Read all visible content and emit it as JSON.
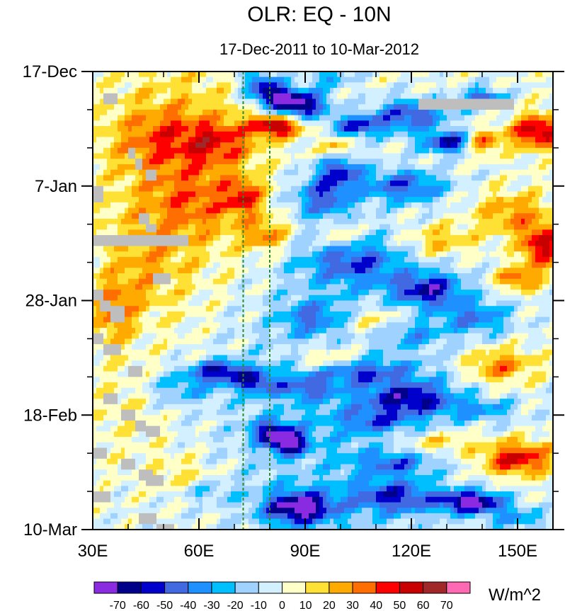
{
  "chart_data": {
    "type": "heatmap",
    "title": "OLR: EQ - 10N",
    "subtitle": "17-Dec-2011 to 10-Mar-2012",
    "x_axis": {
      "range": [
        30,
        160
      ],
      "ticks": [
        30,
        60,
        90,
        120,
        150
      ],
      "tick_labels": [
        "30E",
        "60E",
        "90E",
        "120E",
        "150E"
      ],
      "minor_step": 10
    },
    "y_axis": {
      "range_days": [
        0,
        84
      ],
      "ticks": [
        0,
        21,
        42,
        63,
        84
      ],
      "tick_labels": [
        "17-Dec",
        "7-Jan",
        "28-Jan",
        "18-Feb",
        "10-Mar"
      ],
      "minor_step_days": 7
    },
    "reference_lines": [
      {
        "lon": 72.5,
        "style": "dashed",
        "color": "#2e8b2e"
      },
      {
        "lon": 80,
        "style": "dashed",
        "color": "#2e8b2e"
      }
    ],
    "colorbar": {
      "units": "W/m^2",
      "levels": [
        -70,
        -60,
        -50,
        -40,
        -30,
        -20,
        -10,
        0,
        10,
        20,
        30,
        40,
        50,
        60,
        70
      ],
      "level_labels": [
        "-70",
        "-60",
        "-50",
        "-40",
        "-30",
        "-20",
        "-10",
        "0",
        "10",
        "20",
        "30",
        "40",
        "50",
        "60",
        "70"
      ],
      "colors": [
        "#8a2be2",
        "#00008b",
        "#0000cd",
        "#4169e1",
        "#1e90ff",
        "#00bfff",
        "#a0d2ff",
        "#d2f0ff",
        "#ffffc8",
        "#ffe135",
        "#ffaa00",
        "#ff6e00",
        "#ff0000",
        "#c80000",
        "#a02828",
        "#ff69b4"
      ]
    },
    "missing_data_color": "#bebebe",
    "missing_data_blocks": [
      {
        "lon": [
          33,
          37
        ],
        "days": [
          4,
          6
        ]
      },
      {
        "lon": [
          40,
          42
        ],
        "days": [
          14,
          16
        ]
      },
      {
        "lon": [
          42,
          44
        ],
        "days": [
          16,
          18
        ]
      },
      {
        "lon": [
          45,
          48
        ],
        "days": [
          18,
          20
        ]
      },
      {
        "lon": [
          30,
          33
        ],
        "days": [
          21,
          24
        ]
      },
      {
        "lon": [
          43,
          46
        ],
        "days": [
          26,
          28
        ]
      },
      {
        "lon": [
          45,
          48
        ],
        "days": [
          28,
          29.5
        ]
      },
      {
        "lon": [
          30,
          57
        ],
        "days": [
          30,
          32
        ]
      },
      {
        "lon": [
          47,
          52
        ],
        "days": [
          37,
          39
        ]
      },
      {
        "lon": [
          30,
          33
        ],
        "days": [
          40,
          42
        ]
      },
      {
        "lon": [
          32,
          35
        ],
        "days": [
          42,
          44
        ]
      },
      {
        "lon": [
          35,
          39
        ],
        "days": [
          43,
          46
        ]
      },
      {
        "lon": [
          30,
          33
        ],
        "days": [
          48,
          50
        ]
      },
      {
        "lon": [
          33,
          38
        ],
        "days": [
          50,
          52
        ]
      },
      {
        "lon": [
          40,
          44
        ],
        "days": [
          54,
          56
        ]
      },
      {
        "lon": [
          33,
          37
        ],
        "days": [
          59,
          61
        ]
      },
      {
        "lon": [
          38,
          42
        ],
        "days": [
          62,
          64
        ]
      },
      {
        "lon": [
          42,
          45
        ],
        "days": [
          64,
          66
        ]
      },
      {
        "lon": [
          45,
          49
        ],
        "days": [
          65,
          67
        ]
      },
      {
        "lon": [
          30,
          34
        ],
        "days": [
          69,
          71
        ]
      },
      {
        "lon": [
          38,
          42
        ],
        "days": [
          71,
          73
        ]
      },
      {
        "lon": [
          43,
          47
        ],
        "days": [
          73,
          75
        ]
      },
      {
        "lon": [
          45,
          50
        ],
        "days": [
          74,
          76
        ]
      },
      {
        "lon": [
          30,
          35
        ],
        "days": [
          77,
          79
        ]
      },
      {
        "lon": [
          43,
          48
        ],
        "days": [
          81,
          83
        ]
      },
      {
        "lon": [
          48,
          53
        ],
        "days": [
          83,
          84
        ]
      },
      {
        "lon": [
          122,
          149
        ],
        "days": [
          5,
          7
        ]
      }
    ],
    "anomaly_features": [
      {
        "lon": 88,
        "day": 6,
        "amp": -80,
        "rl": 8,
        "rd": 2.5
      },
      {
        "lon": 80,
        "day": 4,
        "amp": -55,
        "rl": 6,
        "rd": 2
      },
      {
        "lon": 77,
        "day": 1.5,
        "amp": -35,
        "rl": 6,
        "rd": 2
      },
      {
        "lon": 97,
        "day": 1,
        "amp": -30,
        "rl": 6,
        "rd": 2
      },
      {
        "lon": 105,
        "day": 10,
        "amp": -50,
        "rl": 8,
        "rd": 2
      },
      {
        "lon": 120,
        "day": 8,
        "amp": -50,
        "rl": 10,
        "rd": 3
      },
      {
        "lon": 131,
        "day": 13,
        "amp": -60,
        "rl": 8,
        "rd": 2
      },
      {
        "lon": 140,
        "day": 5,
        "amp": -50,
        "rl": 6,
        "rd": 2
      },
      {
        "lon": 82,
        "day": 10,
        "amp": 60,
        "rl": 7,
        "rd": 2
      },
      {
        "lon": 66,
        "day": 13,
        "amp": 30,
        "rl": 10,
        "rd": 4
      },
      {
        "lon": 50,
        "day": 12,
        "amp": 25,
        "rl": 14,
        "rd": 6
      },
      {
        "lon": 156,
        "day": 11,
        "amp": 60,
        "rl": 8,
        "rd": 3
      },
      {
        "lon": 140,
        "day": 13,
        "amp": 50,
        "rl": 5,
        "rd": 2
      },
      {
        "lon": 99,
        "day": 14,
        "amp": 30,
        "rl": 4,
        "rd": 2
      },
      {
        "lon": 60,
        "day": 24,
        "amp": 22,
        "rl": 14,
        "rd": 6
      },
      {
        "lon": 79,
        "day": 30,
        "amp": 32,
        "rl": 6,
        "rd": 3
      },
      {
        "lon": 73,
        "day": 23,
        "amp": 35,
        "rl": 5,
        "rd": 3
      },
      {
        "lon": 95,
        "day": 23,
        "amp": -45,
        "rl": 8,
        "rd": 4
      },
      {
        "lon": 100,
        "day": 18,
        "amp": -45,
        "rl": 6,
        "rd": 3
      },
      {
        "lon": 118,
        "day": 21,
        "amp": -45,
        "rl": 12,
        "rd": 3
      },
      {
        "lon": 104,
        "day": 35,
        "amp": -40,
        "rl": 14,
        "rd": 4
      },
      {
        "lon": 100,
        "day": 30,
        "amp": 30,
        "rl": 4,
        "rd": 2
      },
      {
        "lon": 128,
        "day": 31,
        "amp": 25,
        "rl": 10,
        "rd": 3
      },
      {
        "lon": 148,
        "day": 26,
        "amp": 30,
        "rl": 10,
        "rd": 4
      },
      {
        "lon": 157,
        "day": 32,
        "amp": 55,
        "rl": 6,
        "rd": 4
      },
      {
        "lon": 150,
        "day": 38,
        "amp": 40,
        "rl": 6,
        "rd": 2
      },
      {
        "lon": 125,
        "day": 40,
        "amp": -55,
        "rl": 10,
        "rd": 3
      },
      {
        "lon": 138,
        "day": 45,
        "amp": -35,
        "rl": 10,
        "rd": 3
      },
      {
        "lon": 120,
        "day": 48,
        "amp": -25,
        "rl": 8,
        "rd": 2
      },
      {
        "lon": 36,
        "day": 44,
        "amp": 30,
        "rl": 6,
        "rd": 6
      },
      {
        "lon": 45,
        "day": 36,
        "amp": 15,
        "rl": 10,
        "rd": 8
      },
      {
        "lon": 97,
        "day": 53,
        "amp": 35,
        "rl": 10,
        "rd": 3
      },
      {
        "lon": 104,
        "day": 55,
        "amp": -40,
        "rl": 14,
        "rd": 2
      },
      {
        "lon": 66,
        "day": 55,
        "amp": -55,
        "rl": 8,
        "rd": 2
      },
      {
        "lon": 76,
        "day": 57,
        "amp": -45,
        "rl": 6,
        "rd": 2
      },
      {
        "lon": 55,
        "day": 58,
        "amp": -25,
        "rl": 10,
        "rd": 3
      },
      {
        "lon": 90,
        "day": 58,
        "amp": -30,
        "rl": 8,
        "rd": 2
      },
      {
        "lon": 120,
        "day": 60,
        "amp": -50,
        "rl": 12,
        "rd": 3
      },
      {
        "lon": 145,
        "day": 54,
        "amp": 35,
        "rl": 10,
        "rd": 3
      },
      {
        "lon": 140,
        "day": 62,
        "amp": -25,
        "rl": 10,
        "rd": 2
      },
      {
        "lon": 85,
        "day": 68,
        "amp": -75,
        "rl": 5,
        "rd": 2
      },
      {
        "lon": 80,
        "day": 66,
        "amp": -45,
        "rl": 6,
        "rd": 2
      },
      {
        "lon": 110,
        "day": 64,
        "amp": -25,
        "rl": 10,
        "rd": 2
      },
      {
        "lon": 150,
        "day": 71,
        "amp": 55,
        "rl": 10,
        "rd": 3
      },
      {
        "lon": 128,
        "day": 68,
        "amp": 25,
        "rl": 12,
        "rd": 2
      },
      {
        "lon": 115,
        "day": 72,
        "amp": -30,
        "rl": 10,
        "rd": 2
      },
      {
        "lon": 88,
        "day": 80,
        "amp": -70,
        "rl": 10,
        "rd": 3
      },
      {
        "lon": 115,
        "day": 78,
        "amp": -45,
        "rl": 12,
        "rd": 3
      },
      {
        "lon": 137,
        "day": 79,
        "amp": -75,
        "rl": 9,
        "rd": 2
      },
      {
        "lon": 55,
        "day": 74,
        "amp": 15,
        "rl": 10,
        "rd": 4
      },
      {
        "lon": 40,
        "day": 62,
        "amp": 10,
        "rl": 10,
        "rd": 8
      },
      {
        "lon": 150,
        "day": 82,
        "amp": -30,
        "rl": 8,
        "rd": 2
      },
      {
        "lon": 62,
        "day": 77,
        "amp": -20,
        "rl": 8,
        "rd": 2
      },
      {
        "lon": 92,
        "day": 45,
        "amp": -30,
        "rl": 8,
        "rd": 3
      },
      {
        "lon": 110,
        "day": 46,
        "amp": 25,
        "rl": 10,
        "rd": 3
      }
    ]
  }
}
